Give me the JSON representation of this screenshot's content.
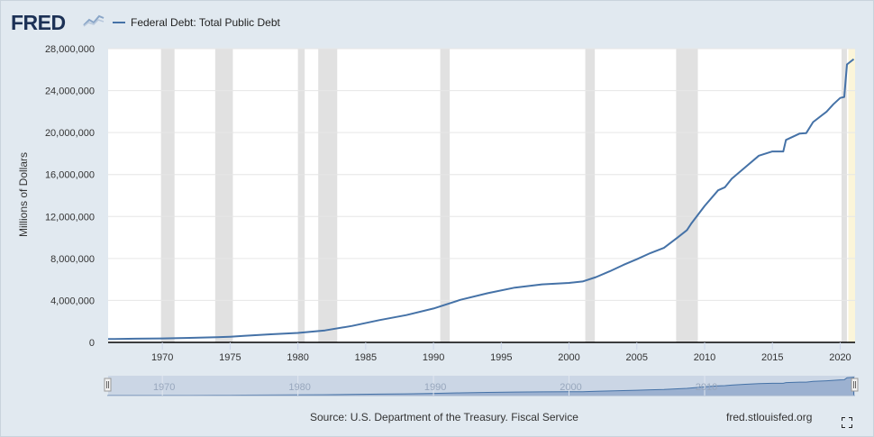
{
  "header": {
    "logo_text": "FRED",
    "legend_label": "Federal Debt: Total Public Debt"
  },
  "footer": {
    "source": "Source: U.S. Department of the Treasury. Fiscal Service",
    "site": "fred.stlouisfed.org"
  },
  "colors": {
    "series": "#4572a7",
    "recession": "#e1e1e1",
    "forecast_band": "#fbf5d9",
    "navigator_fill": "#a9bcd8",
    "background": "#e1e9f0"
  },
  "icons": {
    "logo_mark": "line-chart-icon",
    "fullscreen": "expand-icon"
  },
  "chart_data": {
    "type": "line",
    "title": "",
    "xlabel": "",
    "ylabel": "Millions of Dollars",
    "xlim": [
      1966,
      2021.1
    ],
    "ylim": [
      0,
      28000000
    ],
    "grid": true,
    "legend": "top-left",
    "x_ticks": [
      "1970",
      "1975",
      "1980",
      "1985",
      "1990",
      "1995",
      "2000",
      "2005",
      "2010",
      "2015",
      "2020"
    ],
    "y_ticks": [
      "0",
      "4,000,000",
      "8,000,000",
      "12,000,000",
      "16,000,000",
      "20,000,000",
      "24,000,000",
      "28,000,000"
    ],
    "navigator_ticks": [
      "1970",
      "1980",
      "1990",
      "2000",
      "2010"
    ],
    "recessions": [
      [
        1969.9,
        1970.9
      ],
      [
        1973.9,
        1975.2
      ],
      [
        1980.0,
        1980.5
      ],
      [
        1981.5,
        1982.9
      ],
      [
        1990.5,
        1991.2
      ],
      [
        2001.2,
        2001.9
      ],
      [
        2007.9,
        2009.5
      ],
      [
        2020.1,
        2020.5
      ]
    ],
    "series": [
      {
        "name": "Federal Debt: Total Public Debt",
        "x": [
          1966,
          1968,
          1970,
          1972,
          1974,
          1975,
          1976,
          1978,
          1980,
          1982,
          1984,
          1986,
          1988,
          1990,
          1992,
          1994,
          1996,
          1998,
          2000,
          2001,
          2002,
          2003,
          2004,
          2005,
          2006,
          2007,
          2008,
          2008.7,
          2009,
          2010,
          2011,
          2011.5,
          2012,
          2013,
          2014,
          2015,
          2015.8,
          2016,
          2017,
          2017.5,
          2018,
          2019,
          2019.5,
          2020,
          2020.3,
          2020.5,
          2021
        ],
        "y": [
          320000,
          350000,
          380000,
          430000,
          490000,
          540000,
          620000,
          770000,
          900000,
          1140000,
          1570000,
          2120000,
          2600000,
          3230000,
          4060000,
          4690000,
          5220000,
          5530000,
          5670000,
          5810000,
          6230000,
          6780000,
          7380000,
          7930000,
          8510000,
          9010000,
          9990000,
          10700000,
          11300000,
          13000000,
          14500000,
          14790000,
          15600000,
          16700000,
          17800000,
          18200000,
          18200000,
          19300000,
          19900000,
          19950000,
          21000000,
          22000000,
          22700000,
          23300000,
          23400000,
          26500000,
          27000000
        ]
      }
    ]
  }
}
